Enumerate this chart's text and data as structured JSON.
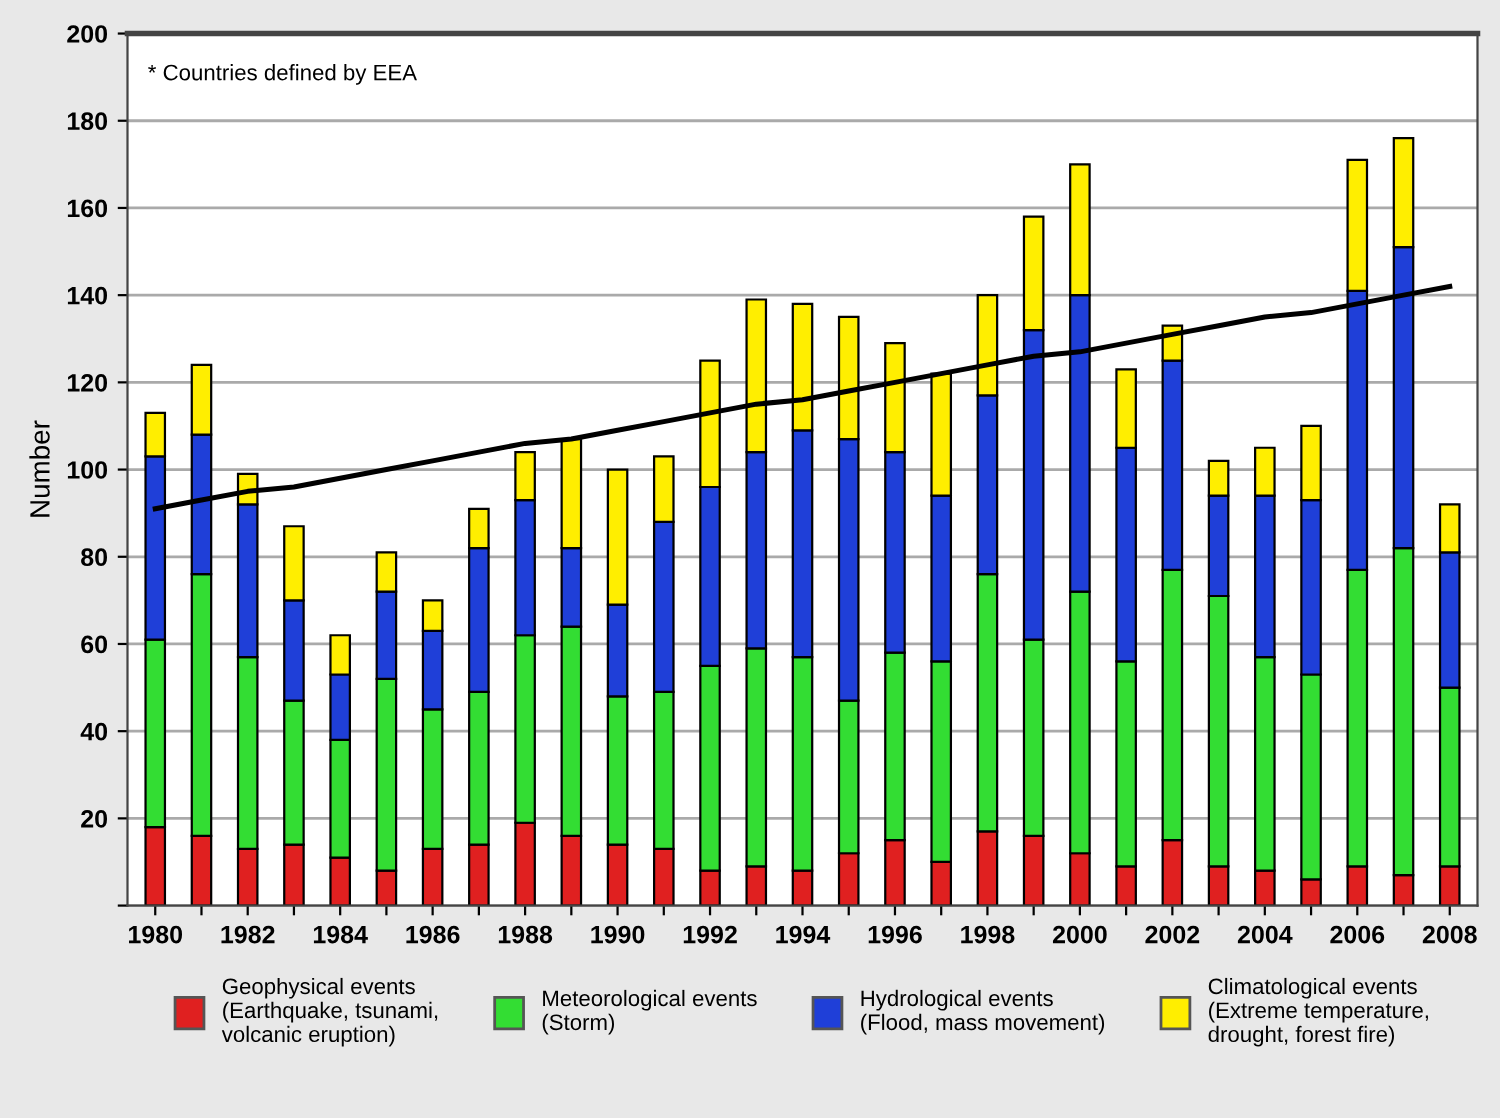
{
  "chart_data": {
    "type": "bar",
    "stacked": true,
    "ylabel": "Number",
    "categories": [
      "1980",
      null,
      "1982",
      null,
      "1984",
      null,
      "1986",
      null,
      "1988",
      null,
      "1990",
      null,
      "1992",
      null,
      "1994",
      null,
      "1996",
      null,
      "1998",
      null,
      "2000",
      null,
      "2002",
      null,
      "2004",
      null,
      "2006",
      null,
      "2008"
    ],
    "series": [
      {
        "name": "Geophysical events\n(Earthquake, tsunami,\nvolcanic eruption)",
        "color": "#e02020",
        "values": [
          18,
          16,
          13,
          14,
          11,
          8,
          13,
          14,
          19,
          16,
          14,
          13,
          8,
          9,
          8,
          12,
          15,
          10,
          17,
          16,
          12,
          9,
          15,
          9,
          8,
          6,
          9,
          7,
          9
        ]
      },
      {
        "name": "Meteorological events\n(Storm)",
        "color": "#33dd33",
        "values": [
          43,
          60,
          44,
          33,
          27,
          44,
          32,
          35,
          43,
          48,
          34,
          36,
          47,
          50,
          49,
          35,
          43,
          46,
          59,
          45,
          60,
          47,
          62,
          62,
          49,
          47,
          68,
          75,
          41
        ]
      },
      {
        "name": "Hydrological events\n(Flood, mass movement)",
        "color": "#1f3fd8",
        "values": [
          42,
          32,
          35,
          23,
          15,
          20,
          18,
          33,
          31,
          18,
          21,
          39,
          41,
          45,
          52,
          60,
          46,
          38,
          41,
          71,
          68,
          49,
          48,
          23,
          37,
          40,
          64,
          69,
          31
        ]
      },
      {
        "name": "Climatological events\n(Extreme temperature,\ndrought, forest fire)",
        "color": "#ffee00",
        "values": [
          10,
          16,
          7,
          17,
          9,
          9,
          7,
          9,
          11,
          25,
          31,
          15,
          29,
          35,
          29,
          28,
          25,
          28,
          23,
          26,
          30,
          18,
          8,
          8,
          11,
          17,
          30,
          25,
          11
        ]
      },
      {
        "type": "line",
        "color": "#000000",
        "values": [
          91,
          93,
          95,
          96,
          98,
          100,
          102,
          104,
          106,
          107,
          109,
          111,
          113,
          115,
          116,
          118,
          120,
          122,
          124,
          126,
          127,
          129,
          131,
          133,
          135,
          136,
          138,
          140,
          142
        ]
      }
    ],
    "ylim": [
      0,
      200
    ],
    "yticks": [
      {
        "value": 0,
        "label": null
      },
      20,
      40,
      60,
      80,
      100,
      120,
      140,
      160,
      180,
      200
    ],
    "grid": "y",
    "legend": "bottom",
    "annotations": [
      "* Countries defined by EEA"
    ]
  }
}
